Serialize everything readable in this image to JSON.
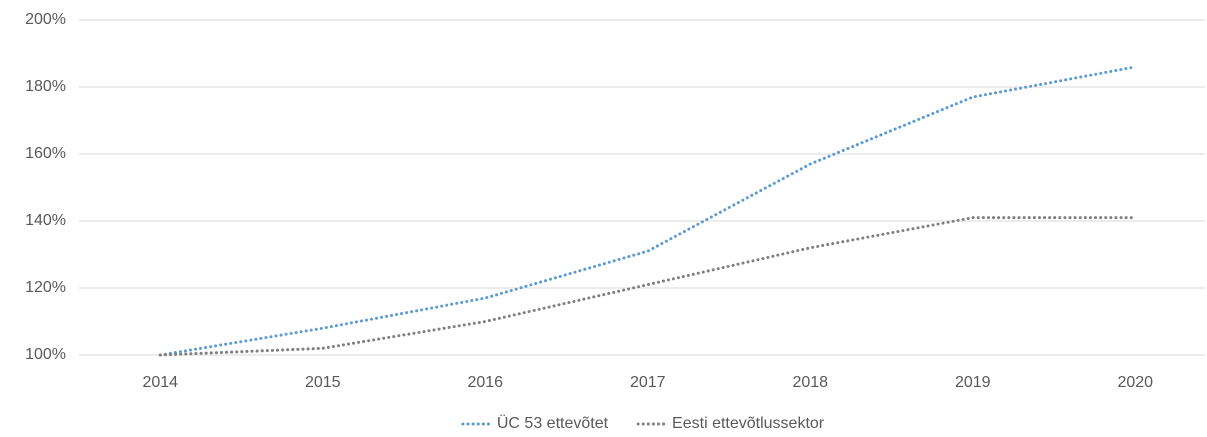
{
  "chart_data": {
    "type": "line",
    "categories": [
      "2014",
      "2015",
      "2016",
      "2017",
      "2018",
      "2019",
      "2020"
    ],
    "series": [
      {
        "name": "ÜC 53 ettevõtet",
        "color": "#5b9bd5",
        "values": [
          100,
          108,
          117,
          131,
          157,
          177,
          186
        ]
      },
      {
        "name": "Eesti ettevõtlussektor",
        "color": "#7f7f7f",
        "values": [
          100,
          102,
          110,
          121,
          132,
          141,
          141
        ]
      }
    ],
    "ylim": [
      100,
      200
    ],
    "yticks": [
      {
        "value": 100,
        "label": "100%"
      },
      {
        "value": 120,
        "label": "120%"
      },
      {
        "value": 140,
        "label": "140%"
      },
      {
        "value": 160,
        "label": "160%"
      },
      {
        "value": 180,
        "label": "180%"
      },
      {
        "value": 200,
        "label": "200%"
      }
    ],
    "grid": true,
    "legend": "bottom"
  }
}
